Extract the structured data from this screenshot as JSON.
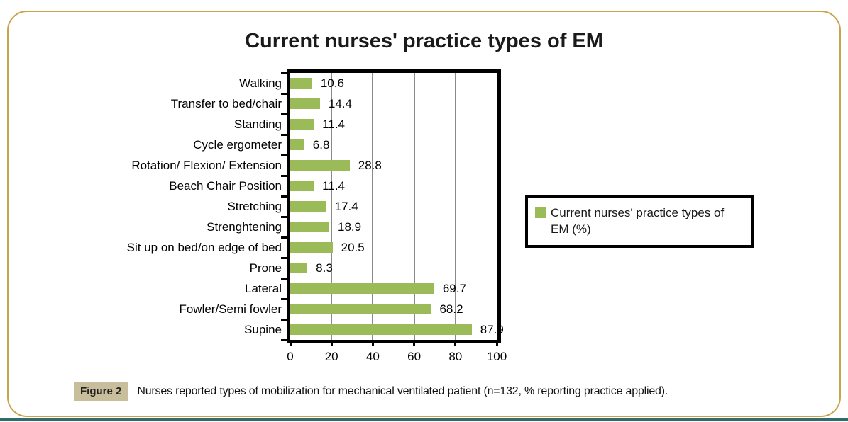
{
  "page": {
    "frame_color": "#C9A24B",
    "bottom_rule_color": "#2F6C6C"
  },
  "chart_data": {
    "type": "bar",
    "orientation": "horizontal",
    "title": "Current nurses' practice types of EM",
    "categories": [
      "Walking",
      "Transfer to bed/chair",
      "Standing",
      "Cycle ergometer",
      "Rotation/ Flexion/ Extension",
      "Beach Chair Position",
      "Stretching",
      "Strenghtening",
      "Sit up on bed/on edge of bed",
      "Prone",
      "Lateral",
      "Fowler/Semi fowler",
      "Supine"
    ],
    "values": [
      10.6,
      14.4,
      11.4,
      6.8,
      28.8,
      11.4,
      17.4,
      18.9,
      20.5,
      8.3,
      69.7,
      68.2,
      87.9
    ],
    "value_suffix": "",
    "xlim": [
      0,
      100
    ],
    "x_ticks": [
      0,
      20,
      40,
      60,
      80,
      100
    ],
    "grid": "vertical-gray",
    "bar_color": "#9BBB59",
    "gridline_color": "#8A8A8A",
    "legend": {
      "label": "Current nurses' practice types of EM (%)",
      "position": "right-middle",
      "swatch_color": "#9BBB59"
    }
  },
  "caption": {
    "label": "Figure 2",
    "text": "Nurses reported types of mobilization for mechanical ventilated patient (n=132, % reporting practice applied)."
  }
}
